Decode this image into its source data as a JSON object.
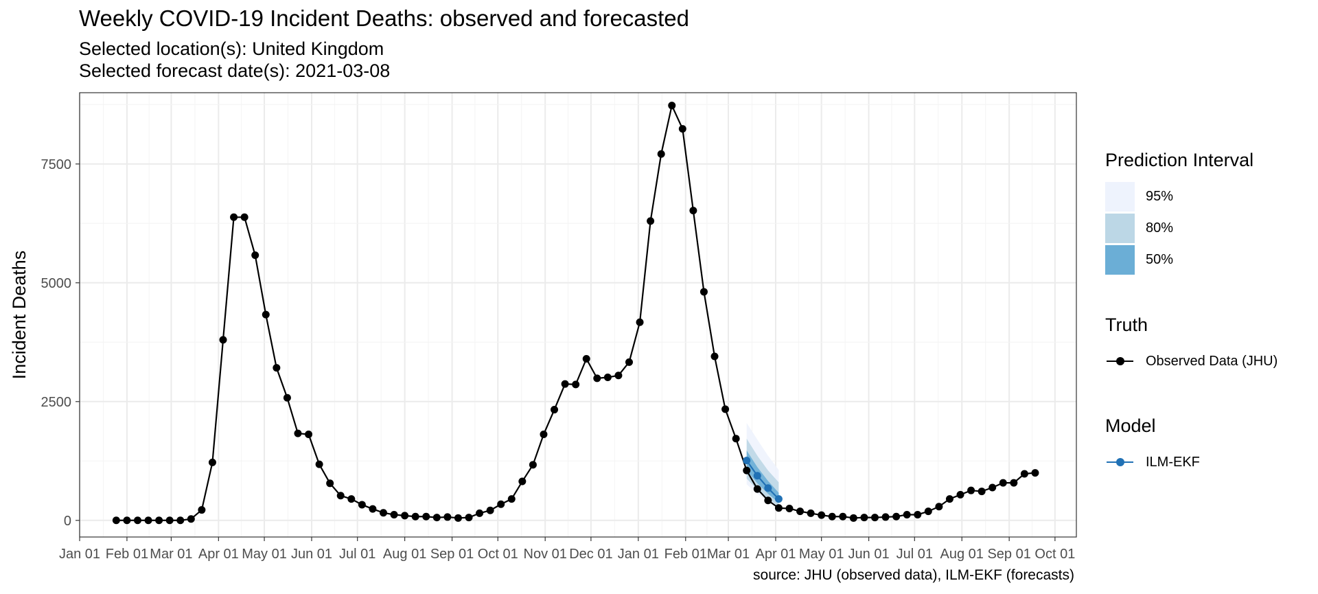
{
  "header": {
    "title": "Weekly COVID-19 Incident Deaths: observed and forecasted",
    "subtitle_location": "Selected location(s): United Kingdom",
    "subtitle_date": "Selected forecast date(s): 2021-03-08"
  },
  "caption": "source: JHU (observed data), ILM-EKF (forecasts)",
  "legend": {
    "pi_title": "Prediction Interval",
    "pi_items": [
      {
        "label": "95%",
        "color": "#eef3fd"
      },
      {
        "label": "80%",
        "color": "#bcd7e6"
      },
      {
        "label": "50%",
        "color": "#6baed6"
      }
    ],
    "truth_title": "Truth",
    "truth_label": "Observed Data (JHU)",
    "truth_color": "#000000",
    "model_title": "Model",
    "model_label": "ILM-EKF",
    "model_color": "#2171b5"
  },
  "chart_data": {
    "type": "line",
    "ylabel": "Incident Deaths",
    "xlabel": "",
    "y_ticks": [
      0,
      2500,
      5000,
      7500
    ],
    "ylim": [
      -350,
      9000
    ],
    "xlim": [
      "2020-01-01",
      "2021-10-15"
    ],
    "x_ticks": [
      {
        "date": "2020-01-01",
        "label": "Jan 01"
      },
      {
        "date": "2020-02-01",
        "label": "Feb 01"
      },
      {
        "date": "2020-03-01",
        "label": "Mar 01"
      },
      {
        "date": "2020-04-01",
        "label": "Apr 01"
      },
      {
        "date": "2020-05-01",
        "label": "May 01"
      },
      {
        "date": "2020-06-01",
        "label": "Jun 01"
      },
      {
        "date": "2020-07-01",
        "label": "Jul 01"
      },
      {
        "date": "2020-08-01",
        "label": "Aug 01"
      },
      {
        "date": "2020-09-01",
        "label": "Sep 01"
      },
      {
        "date": "2020-10-01",
        "label": "Oct 01"
      },
      {
        "date": "2020-11-01",
        "label": "Nov 01"
      },
      {
        "date": "2020-12-01",
        "label": "Dec 01"
      },
      {
        "date": "2021-01-01",
        "label": "Jan 01"
      },
      {
        "date": "2021-02-01",
        "label": "Feb 01"
      },
      {
        "date": "2021-03-01",
        "label": "Mar 01"
      },
      {
        "date": "2021-04-01",
        "label": "Apr 01"
      },
      {
        "date": "2021-05-01",
        "label": "May 01"
      },
      {
        "date": "2021-06-01",
        "label": "Jun 01"
      },
      {
        "date": "2021-07-01",
        "label": "Jul 01"
      },
      {
        "date": "2021-08-01",
        "label": "Aug 01"
      },
      {
        "date": "2021-09-01",
        "label": "Sep 01"
      },
      {
        "date": "2021-10-01",
        "label": "Oct 01"
      }
    ],
    "grid": true,
    "legend_position": "right",
    "observed": {
      "name": "Observed Data (JHU)",
      "color": "#000000",
      "start_date": "2020-01-25",
      "step_days": 7,
      "values": [
        0,
        0,
        0,
        0,
        0,
        0,
        0,
        30,
        220,
        1220,
        3800,
        6380,
        6380,
        5580,
        4330,
        3210,
        2580,
        1830,
        1810,
        1180,
        780,
        520,
        450,
        330,
        240,
        160,
        120,
        100,
        80,
        80,
        60,
        70,
        50,
        60,
        150,
        210,
        340,
        450,
        820,
        1170,
        1810,
        2330,
        2870,
        2860,
        3400,
        2990,
        3010,
        3050,
        3330,
        4170,
        6300,
        7710,
        8730,
        8240,
        6520,
        4810,
        3450,
        2340,
        1720,
        1050,
        660,
        420,
        260,
        250,
        190,
        150,
        110,
        80,
        80,
        50,
        60,
        60,
        70,
        80,
        120,
        120,
        190,
        290,
        450,
        540,
        630,
        610,
        690,
        790,
        790,
        980,
        1000
      ]
    },
    "forecast": {
      "name": "ILM-EKF",
      "color": "#2171b5",
      "dates": [
        "2021-03-13",
        "2021-03-20",
        "2021-03-27",
        "2021-04-03"
      ],
      "median": [
        1260,
        940,
        680,
        450
      ],
      "q50": [
        [
          1050,
          1470
        ],
        [
          780,
          1120
        ],
        [
          560,
          830
        ],
        [
          370,
          580
        ]
      ],
      "q80": [
        [
          880,
          1720
        ],
        [
          640,
          1360
        ],
        [
          460,
          1050
        ],
        [
          290,
          800
        ]
      ],
      "q95": [
        [
          760,
          2050
        ],
        [
          560,
          1700
        ],
        [
          390,
          1360
        ],
        [
          240,
          1060
        ]
      ]
    }
  }
}
